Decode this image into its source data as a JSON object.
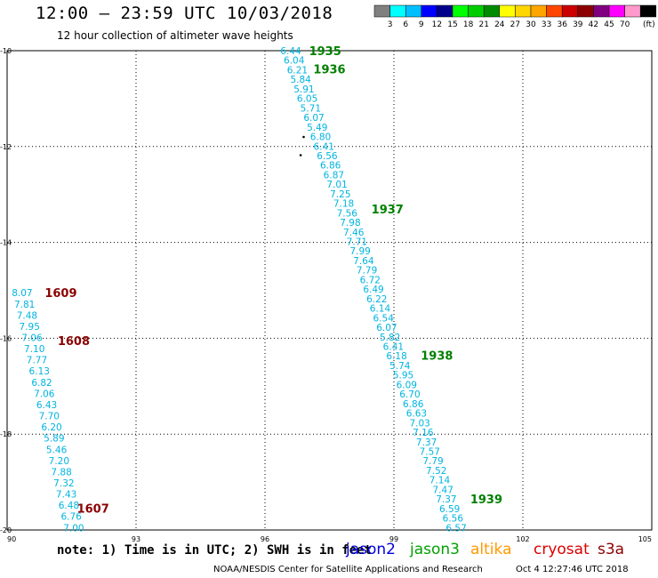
{
  "title": "12:00 – 23:59 UTC 10/03/2018",
  "subtitle": "12 hour collection of altimeter wave heights",
  "note": "note:  1) Time is in UTC;  2) SWH is in feet",
  "credit": "NOAA/NESDIS Center for Satellite Applications and Research",
  "generated_time": "Oct  4 12:27:46 UTC 2018",
  "colors": {
    "jason2": "#0000dd",
    "jason3": "#00a000",
    "altika": "#ff9900",
    "cryosat": "#dd0000",
    "s3a": "#8b0000",
    "swh_text": "#00b4e0",
    "time_jason3": "#008000",
    "time_s3a": "#8b0000",
    "grid": "#000000"
  },
  "satellites": [
    {
      "name": "jason2",
      "label": "jason2",
      "color": "#0000dd"
    },
    {
      "name": "jason3",
      "label": "jason3",
      "color": "#00a000"
    },
    {
      "name": "altika",
      "label": "altika",
      "color": "#ff9900"
    },
    {
      "name": "cryosat",
      "label": "cryosat",
      "color": "#dd0000"
    },
    {
      "name": "s3a",
      "label": "s3a",
      "color": "#8b0000"
    }
  ],
  "color_scale": {
    "unit": "(ft)",
    "colors": [
      "#808080",
      "#00ffff",
      "#00bfff",
      "#0000ff",
      "#00008b",
      "#00ff00",
      "#00cd00",
      "#008b00",
      "#ffff00",
      "#ffd700",
      "#ffa500",
      "#ff4500",
      "#cc0000",
      "#8b0000",
      "#800080",
      "#ff00ff",
      "#ff99cc",
      "#000000"
    ],
    "labels": [
      "3",
      "6",
      "9",
      "12",
      "15",
      "18",
      "21",
      "24",
      "27",
      "30",
      "33",
      "36",
      "39",
      "42",
      "45",
      "70"
    ]
  },
  "map": {
    "lon_range": [
      90,
      105
    ],
    "lat_range": [
      -10,
      -20
    ],
    "lon_ticks": [
      "90",
      "93",
      "96",
      "99",
      "102",
      "105"
    ],
    "lat_ticks": [
      "-10",
      "-12",
      "-14",
      "-16",
      "-18",
      "-20"
    ],
    "islands": [
      {
        "name": "island",
        "lon": 96.83,
        "lat": -12.18
      },
      {
        "name": "island",
        "lon": 96.9,
        "lat": -11.8
      }
    ]
  },
  "tracks": [
    {
      "satellite": "jason3",
      "swh_start_lon": 96.6,
      "swh_end_lon": 100.45,
      "swh_start_lat": -10.0,
      "swh_end_lat": -19.95,
      "values": [
        "6.44",
        "6.04",
        "6.21",
        "5.84",
        "5.91",
        "6.05",
        "5.71",
        "6.07",
        "5.49",
        "6.80",
        "6.41",
        "6.56",
        "6.86",
        "6.87",
        "7.01",
        "7.25",
        "7.18",
        "7.56",
        "7.98",
        "7.46",
        "7.71",
        "7.99",
        "7.64",
        "7.79",
        "6.72",
        "6.49",
        "6.22",
        "6.14",
        "6.54",
        "6.07",
        "5.82",
        "6.41",
        "6.18",
        "5.74",
        "5.95",
        "6.09",
        "6.70",
        "6.86",
        "6.63",
        "7.03",
        "7.16",
        "7.37",
        "7.57",
        "7.79",
        "7.52",
        "7.14",
        "7.47",
        "7.37",
        "6.59",
        "6.56",
        "6.57"
      ],
      "times": [
        {
          "label": "1935",
          "lon": 97.4,
          "lat": -10.0
        },
        {
          "label": "1936",
          "lon": 97.5,
          "lat": -10.38
        },
        {
          "label": "1937",
          "lon": 98.85,
          "lat": -13.3
        },
        {
          "label": "1938",
          "lon": 100.0,
          "lat": -16.35
        },
        {
          "label": "1939",
          "lon": 101.15,
          "lat": -19.35
        }
      ]
    },
    {
      "satellite": "s3a",
      "swh_start_lon": 90.35,
      "swh_end_lon": 91.55,
      "swh_start_lat": -15.05,
      "swh_end_lat": -19.95,
      "values": [
        "8.07",
        "7.81",
        "7.48",
        "7.95",
        "7.06",
        "7.10",
        "7.77",
        "6.13",
        "6.82",
        "7.06",
        "6.43",
        "7.70",
        "6.20",
        "5.89",
        "5.46",
        "7.20",
        "7.88",
        "7.32",
        "7.43",
        "6.48",
        "6.76",
        "7.00"
      ],
      "times": [
        {
          "label": "1609",
          "lon": 91.25,
          "lat": -15.05
        },
        {
          "label": "1608",
          "lon": 91.55,
          "lat": -16.05
        },
        {
          "label": "1607",
          "lon": 92.0,
          "lat": -19.55
        }
      ]
    }
  ]
}
